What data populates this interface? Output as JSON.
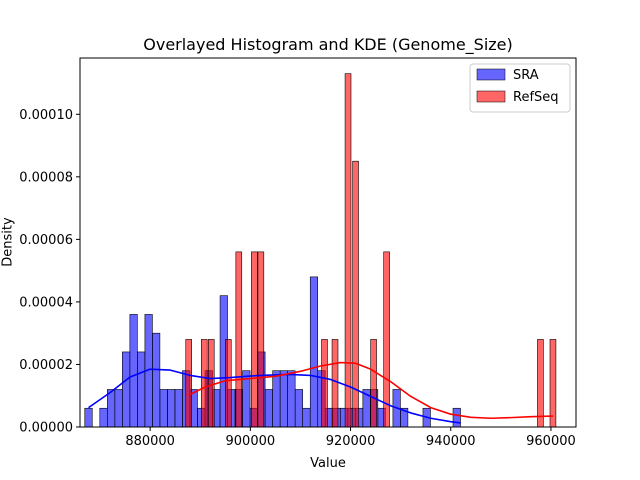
{
  "chart_data": {
    "type": "bar",
    "title": "Overlayed Histogram and KDE (Genome_Size)",
    "xlabel": "Value",
    "ylabel": "Density",
    "xlim": [
      866000,
      965000
    ],
    "ylim": [
      0,
      0.000118
    ],
    "x_ticks": [
      880000,
      900000,
      920000,
      940000,
      960000
    ],
    "x_tick_labels": [
      "880000",
      "900000",
      "920000",
      "940000",
      "960000"
    ],
    "y_ticks": [
      0,
      2e-05,
      4e-05,
      6e-05,
      8e-05,
      0.0001
    ],
    "y_tick_labels": [
      "0.00000",
      "0.00002",
      "0.00004",
      "0.00006",
      "0.00008",
      "0.00010"
    ],
    "grid": false,
    "legend_position": "top-right",
    "series": [
      {
        "name": "SRA",
        "color": "#0000ff",
        "bin_width": 1490,
        "bins": [
          [
            867700,
            6e-06
          ],
          [
            870700,
            6e-06
          ],
          [
            872200,
            1.2e-05
          ],
          [
            873700,
            1.2e-05
          ],
          [
            875200,
            2.4e-05
          ],
          [
            876700,
            3.6e-05
          ],
          [
            878200,
            2.4e-05
          ],
          [
            879700,
            3.6e-05
          ],
          [
            881200,
            3e-05
          ],
          [
            882700,
            1.2e-05
          ],
          [
            884200,
            1.2e-05
          ],
          [
            885700,
            1.2e-05
          ],
          [
            887200,
            1.8e-05
          ],
          [
            888700,
            1.2e-05
          ],
          [
            890200,
            6e-06
          ],
          [
            891700,
            1.8e-05
          ],
          [
            893200,
            1.2e-05
          ],
          [
            894700,
            4.2e-05
          ],
          [
            896200,
            1.2e-05
          ],
          [
            897700,
            1.2e-05
          ],
          [
            899200,
            1.8e-05
          ],
          [
            900700,
            6e-06
          ],
          [
            902200,
            2.4e-05
          ],
          [
            903700,
            1.2e-05
          ],
          [
            905200,
            1.8e-05
          ],
          [
            906700,
            1.8e-05
          ],
          [
            908200,
            1.8e-05
          ],
          [
            909700,
            1.2e-05
          ],
          [
            911200,
            6e-06
          ],
          [
            912700,
            4.8e-05
          ],
          [
            914200,
            1.8e-05
          ],
          [
            915700,
            6e-06
          ],
          [
            917200,
            6e-06
          ],
          [
            918700,
            6e-06
          ],
          [
            920200,
            6e-06
          ],
          [
            921700,
            6e-06
          ],
          [
            923200,
            1.2e-05
          ],
          [
            924700,
            1.2e-05
          ],
          [
            926200,
            6e-06
          ],
          [
            929200,
            1.2e-05
          ],
          [
            930700,
            6e-06
          ],
          [
            935200,
            6e-06
          ],
          [
            941200,
            6e-06
          ]
        ],
        "kde": [
          [
            867700,
            6.2e-06
          ],
          [
            872000,
            1.1e-05
          ],
          [
            876000,
            1.6e-05
          ],
          [
            880000,
            1.85e-05
          ],
          [
            884000,
            1.82e-05
          ],
          [
            888000,
            1.65e-05
          ],
          [
            892000,
            1.55e-05
          ],
          [
            896000,
            1.58e-05
          ],
          [
            900000,
            1.63e-05
          ],
          [
            904000,
            1.66e-05
          ],
          [
            908000,
            1.68e-05
          ],
          [
            912000,
            1.65e-05
          ],
          [
            916000,
            1.52e-05
          ],
          [
            920000,
            1.28e-05
          ],
          [
            924000,
            9.8e-06
          ],
          [
            928000,
            6.8e-06
          ],
          [
            932000,
            4.5e-06
          ],
          [
            936000,
            2.8e-06
          ],
          [
            940000,
            1.7e-06
          ],
          [
            942000,
            1.3e-06
          ]
        ]
      },
      {
        "name": "RefSeq",
        "color": "#ff0000",
        "bin_width": 1180,
        "bins": [
          [
            887700,
            2.8e-05
          ],
          [
            890800,
            2.8e-05
          ],
          [
            892200,
            2.8e-05
          ],
          [
            895600,
            2.8e-05
          ],
          [
            897700,
            5.6e-05
          ],
          [
            900800,
            5.6e-05
          ],
          [
            902100,
            5.6e-05
          ],
          [
            914800,
            2.8e-05
          ],
          [
            916900,
            2.8e-05
          ],
          [
            919500,
            0.000113
          ],
          [
            921000,
            8.5e-05
          ],
          [
            924600,
            2.8e-05
          ],
          [
            927200,
            5.6e-05
          ],
          [
            957900,
            2.8e-05
          ],
          [
            960400,
            2.8e-05
          ]
        ],
        "kde": [
          [
            887700,
            1.02e-05
          ],
          [
            891000,
            1.28e-05
          ],
          [
            895000,
            1.48e-05
          ],
          [
            900000,
            1.55e-05
          ],
          [
            905000,
            1.62e-05
          ],
          [
            910000,
            1.78e-05
          ],
          [
            914000,
            1.95e-05
          ],
          [
            918000,
            2.06e-05
          ],
          [
            921000,
            2.04e-05
          ],
          [
            924000,
            1.85e-05
          ],
          [
            928000,
            1.45e-05
          ],
          [
            932000,
            9.8e-06
          ],
          [
            936000,
            6.2e-06
          ],
          [
            940000,
            4.1e-06
          ],
          [
            944000,
            3.1e-06
          ],
          [
            948000,
            2.8e-06
          ],
          [
            952000,
            3e-06
          ],
          [
            956000,
            3.3e-06
          ],
          [
            960400,
            3.5e-06
          ]
        ]
      }
    ]
  }
}
